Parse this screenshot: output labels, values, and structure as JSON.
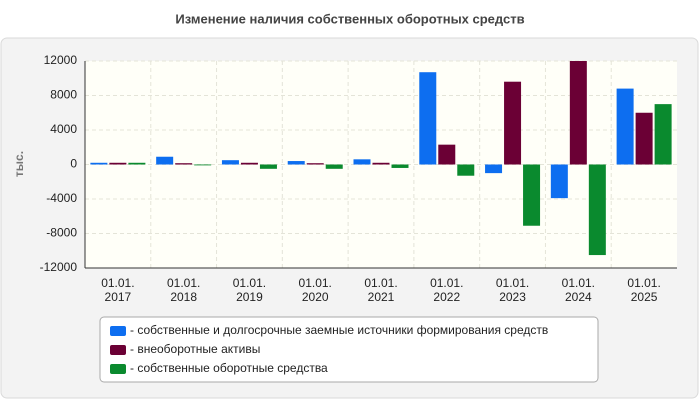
{
  "chart_data": {
    "type": "bar",
    "title": "Изменение наличия собственных оборотных средств",
    "ylabel": "тыс.",
    "categories": [
      "01.01. 2017",
      "01.01. 2018",
      "01.01. 2019",
      "01.01. 2020",
      "01.01. 2021",
      "01.01. 2022",
      "01.01. 2023",
      "01.01. 2024",
      "01.01. 2025"
    ],
    "series": [
      {
        "name": "- собственные и долгосрочные заемные источники формирования средств",
        "color": "#0d6ef0",
        "values": [
          200,
          900,
          500,
          400,
          600,
          10700,
          -1000,
          -3900,
          8800
        ]
      },
      {
        "name": "- внеоборотные активы",
        "color": "#6b0035",
        "values": [
          200,
          150,
          200,
          150,
          200,
          2300,
          9600,
          12000,
          6000
        ]
      },
      {
        "name": "- собственные оборотные средства",
        "color": "#0a8a2e",
        "values": [
          200,
          -100,
          -500,
          -500,
          -400,
          -1300,
          -7100,
          -10500,
          7000
        ]
      }
    ],
    "ylim": [
      -12000,
      12000
    ],
    "yticks": [
      -12000,
      -8000,
      -4000,
      0,
      4000,
      8000,
      12000
    ],
    "grid": true
  }
}
